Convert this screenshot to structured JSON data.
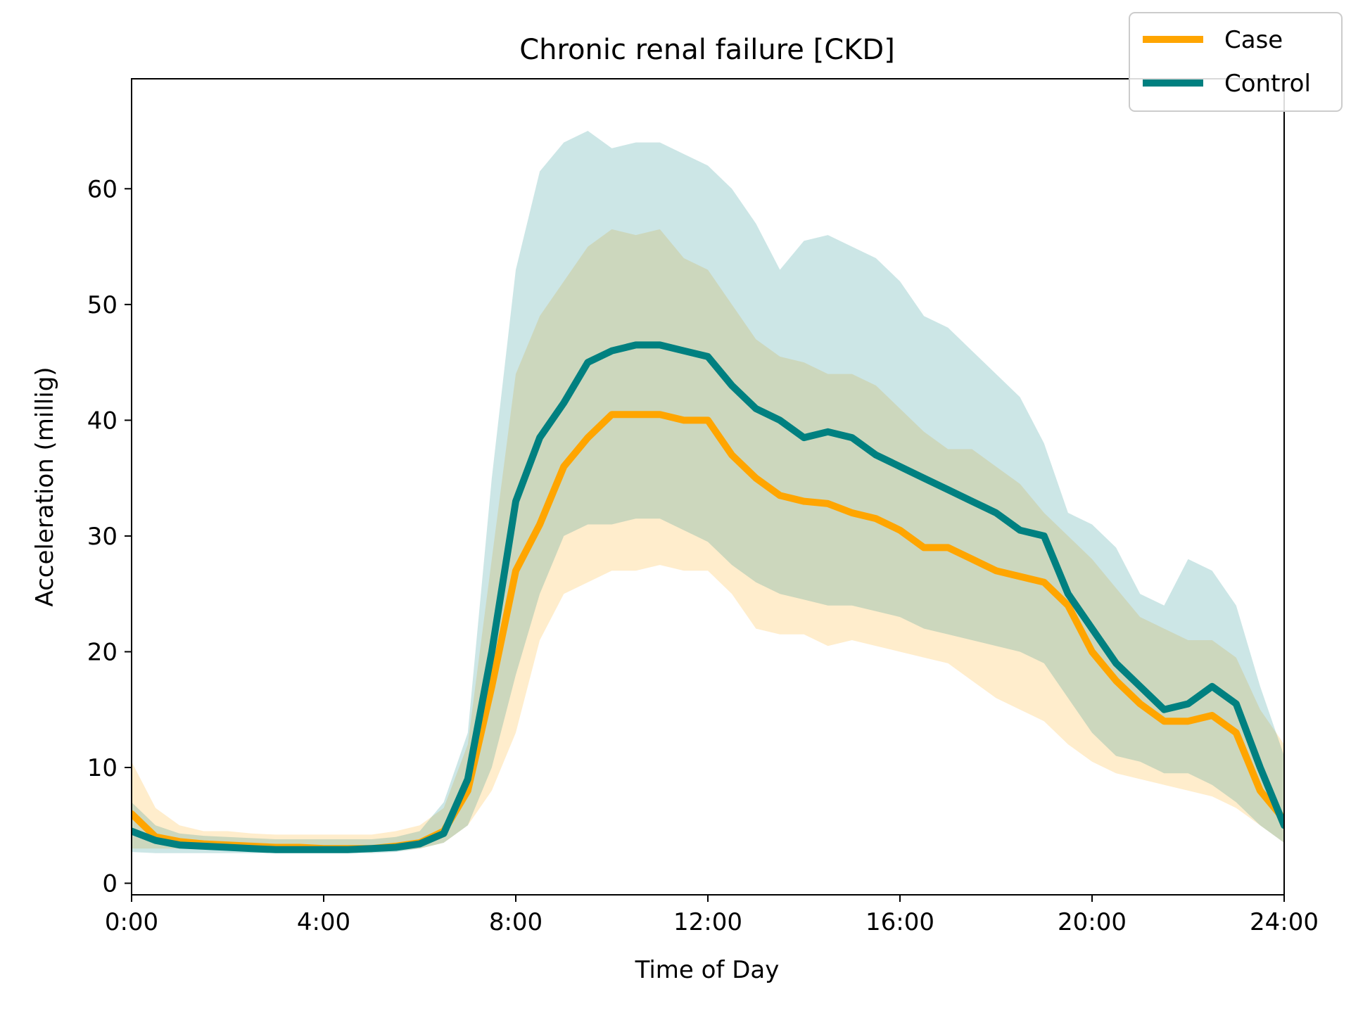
{
  "chart_data": {
    "type": "line",
    "title": "Chronic renal failure [CKD]",
    "xlabel": "Time of Day",
    "ylabel": "Acceleration (millig)",
    "xlim": [
      0,
      24
    ],
    "ylim": [
      -1,
      69.5
    ],
    "x_ticks": [
      0,
      4,
      8,
      12,
      16,
      20,
      24
    ],
    "x_tick_labels": [
      "0:00",
      "4:00",
      "8:00",
      "12:00",
      "16:00",
      "20:00",
      "24:00"
    ],
    "y_ticks": [
      0,
      10,
      20,
      30,
      40,
      50,
      60
    ],
    "y_tick_labels": [
      "0",
      "10",
      "20",
      "30",
      "40",
      "50",
      "60"
    ],
    "grid": false,
    "legend_position": "top-right",
    "legend": [
      "Case",
      "Control"
    ],
    "x": [
      0,
      0.5,
      1,
      1.5,
      2,
      2.5,
      3,
      3.5,
      4,
      4.5,
      5,
      5.5,
      6,
      6.5,
      7,
      7.5,
      8,
      8.5,
      9,
      9.5,
      10,
      10.5,
      11,
      11.5,
      12,
      12.5,
      13,
      13.5,
      14,
      14.5,
      15,
      15.5,
      16,
      16.5,
      17,
      17.5,
      18,
      18.5,
      19,
      19.5,
      20,
      20.5,
      21,
      21.5,
      22,
      22.5,
      23,
      23.5,
      24
    ],
    "series": [
      {
        "name": "Case",
        "color": "#FFA500",
        "values": [
          6,
          4,
          3.6,
          3.4,
          3.3,
          3.2,
          3.1,
          3.1,
          3.0,
          3.0,
          3.0,
          3.2,
          3.5,
          4.5,
          8,
          17,
          27,
          31,
          36,
          38.5,
          40.5,
          40.5,
          40.5,
          40,
          40,
          37,
          35,
          33.5,
          33,
          32.8,
          32,
          31.5,
          30.5,
          29,
          29,
          28,
          27,
          26.5,
          26,
          24,
          20,
          17.5,
          15.5,
          14,
          14,
          14.5,
          13,
          8,
          5.5
        ],
        "band_low": [
          3,
          3,
          3,
          3,
          3,
          2.8,
          2.7,
          2.7,
          2.7,
          2.7,
          2.7,
          2.8,
          3,
          3.5,
          5,
          8,
          13,
          21,
          25,
          26,
          27,
          27,
          27.5,
          27,
          27,
          25,
          22,
          21.5,
          21.5,
          20.5,
          21,
          20.5,
          20,
          19.5,
          19,
          17.5,
          16,
          15,
          14,
          12,
          10.5,
          9.5,
          9,
          8.5,
          8,
          7.5,
          6.5,
          5,
          3.5
        ],
        "band_high": [
          10.5,
          6.5,
          5,
          4.5,
          4.5,
          4.3,
          4.2,
          4.2,
          4.2,
          4.2,
          4.2,
          4.5,
          5,
          6.5,
          12,
          28,
          44,
          49,
          52,
          55,
          56.5,
          56,
          56.5,
          54,
          53,
          50,
          47,
          45.5,
          45,
          44,
          44,
          43,
          41,
          39,
          37.5,
          37.5,
          36,
          34.5,
          32,
          30,
          28,
          25.5,
          23,
          22,
          21,
          21,
          19.5,
          15,
          12
        ]
      },
      {
        "name": "Control",
        "color": "#008080",
        "values": [
          4.5,
          3.7,
          3.3,
          3.2,
          3.1,
          3.0,
          2.9,
          2.9,
          2.9,
          2.9,
          3.0,
          3.1,
          3.4,
          4.3,
          9,
          20,
          33,
          38.5,
          41.5,
          45,
          46,
          46.5,
          46.5,
          46,
          45.5,
          43,
          41,
          40,
          38.5,
          39,
          38.5,
          37,
          36,
          35,
          34,
          33,
          32,
          30.5,
          30,
          25,
          22,
          19,
          17,
          15,
          15.5,
          17,
          15.5,
          10,
          5
        ],
        "band_low": [
          2.7,
          2.6,
          2.6,
          2.6,
          2.6,
          2.6,
          2.6,
          2.6,
          2.6,
          2.6,
          2.6,
          2.7,
          3,
          3.5,
          5,
          10,
          18,
          25,
          30,
          31,
          31,
          31.5,
          31.5,
          30.5,
          29.5,
          27.5,
          26,
          25,
          24.5,
          24,
          24,
          23.5,
          23,
          22,
          21.5,
          21,
          20.5,
          20,
          19,
          16,
          13,
          11,
          10.5,
          9.5,
          9.5,
          8.5,
          7,
          5,
          3.5
        ],
        "band_high": [
          7,
          5,
          4.3,
          4.1,
          4,
          3.9,
          3.8,
          3.8,
          3.8,
          3.8,
          3.8,
          4,
          4.5,
          7,
          13,
          35,
          53,
          61.5,
          64,
          65,
          63.5,
          64,
          64,
          63,
          62,
          60,
          57,
          53,
          55.5,
          56,
          55,
          54,
          52,
          49,
          48,
          46,
          44,
          42,
          38,
          32,
          31,
          29,
          25,
          24,
          28,
          27,
          24,
          17,
          11
        ]
      }
    ]
  }
}
